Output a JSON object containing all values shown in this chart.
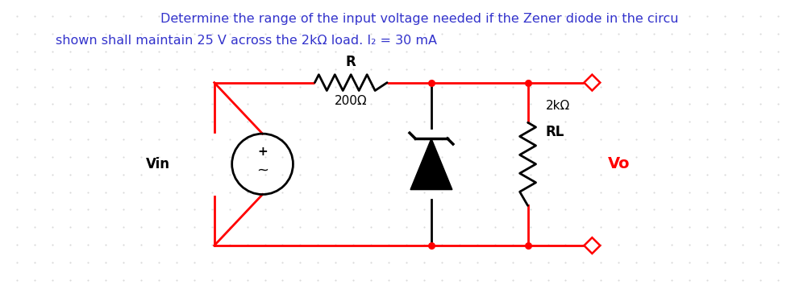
{
  "title_line1": "Determine the range of the input voltage needed if the Zener diode in the circu",
  "title_line2": "shown shall maintain 25 V across the 2kΩ load. I₂ = 30 mA",
  "title_color": "#3333cc",
  "bg_color": "#ffffff",
  "dot_color": "#b0b0b0",
  "circuit_color": "#ff0000",
  "component_color": "#000000",
  "Vo_color": "#ff0000",
  "label_R": "R",
  "label_R_val": "200Ω",
  "label_RL": "RL",
  "label_RL_val": "2kΩ",
  "label_Vin": "Vin",
  "label_Vo": "Vo",
  "figsize": [
    9.81,
    3.64
  ],
  "dpi": 100
}
